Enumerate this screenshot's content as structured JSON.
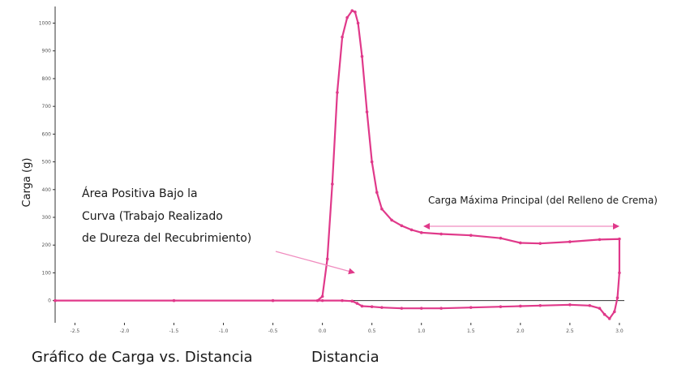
{
  "chart_data": {
    "type": "line",
    "title": "",
    "caption": "Gráfico de Carga vs. Distancia",
    "xlabel": "Distancia",
    "ylabel": "Carga (g)",
    "xlim": [
      -2.7,
      3.05
    ],
    "ylim": [
      -80,
      1060
    ],
    "grid": false,
    "x_ticks": [
      -2.5,
      -2.0,
      -1.5,
      -1.0,
      -0.5,
      0.0,
      0.5,
      1.0,
      1.5,
      2.0,
      2.5,
      3.0
    ],
    "x_tick_labels": [
      "-2.5",
      "-2.0",
      "-1.5",
      "-1.0",
      "-0.5",
      "0.0",
      "0.5",
      "1.0",
      "1.5",
      "2.0",
      "2.5",
      "3.0"
    ],
    "y_ticks": [
      0,
      100,
      200,
      300,
      400,
      500,
      600,
      700,
      800,
      900,
      1000
    ],
    "y_tick_labels": [
      "0",
      "100",
      "200",
      "300",
      "400",
      "500",
      "600",
      "700",
      "800",
      "900",
      "1000"
    ],
    "colors": {
      "curve": "#e0398a",
      "arrow": "#f08cbf",
      "axis": "#333333"
    },
    "series": [
      {
        "x": [
          -2.7,
          -1.5,
          -0.5,
          -0.05,
          0.0,
          0.05,
          0.1,
          0.15,
          0.2,
          0.25,
          0.3,
          0.33,
          0.36,
          0.4,
          0.45,
          0.5,
          0.55,
          0.6,
          0.7,
          0.8,
          0.9,
          1.0,
          1.2,
          1.5,
          1.8,
          2.0,
          2.2,
          2.5,
          2.8,
          3.0,
          3.0,
          2.98,
          2.95,
          2.9,
          2.85,
          2.8,
          2.7,
          2.5,
          2.2,
          2.0,
          1.8,
          1.5,
          1.2,
          1.0,
          0.8,
          0.6,
          0.5,
          0.4,
          0.35,
          0.3,
          0.2,
          0.0,
          -0.5,
          -1.5,
          -2.7
        ],
        "y": [
          0,
          0,
          0,
          0,
          15,
          150,
          420,
          750,
          950,
          1020,
          1045,
          1040,
          1000,
          880,
          680,
          500,
          390,
          330,
          290,
          270,
          255,
          245,
          240,
          235,
          225,
          208,
          206,
          212,
          220,
          222,
          100,
          10,
          -40,
          -65,
          -50,
          -28,
          -18,
          -15,
          -18,
          -20,
          -22,
          -25,
          -28,
          -28,
          -28,
          -25,
          -22,
          -20,
          -10,
          -2,
          0,
          0,
          0,
          0,
          0
        ]
      }
    ],
    "annotations": {
      "area_lines": [
        "Área Positiva Bajo  la",
        "Curva (Trabajo Realizado",
        "de Dureza del Recubrimiento)"
      ],
      "max_load": "Carga Máxima Principal (del Relleno de Crema)"
    }
  }
}
